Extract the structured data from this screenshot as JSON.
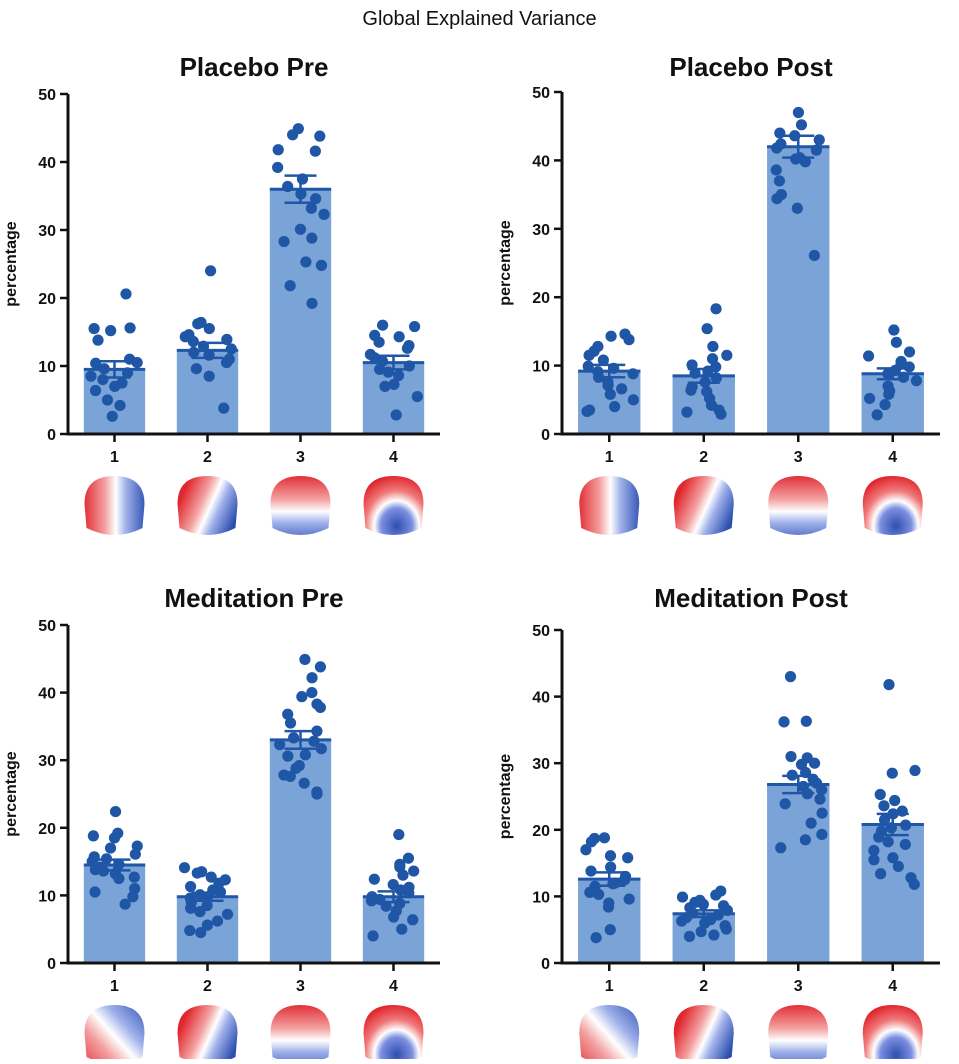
{
  "figure_title": "Global Explained Variance",
  "colors": {
    "bar": "#7aa3d8",
    "point": "#1f56a6",
    "axis": "#111111",
    "topo_red": "#e0262e",
    "topo_blue": "#2c4fb0"
  },
  "chart_data": [
    {
      "type": "bar",
      "title": "Placebo Pre",
      "ylabel": "percentage",
      "ylim": [
        0,
        50
      ],
      "yticks": [
        "0",
        "10",
        "20",
        "30",
        "40",
        "50"
      ],
      "categories": [
        "1",
        "2",
        "3",
        "4"
      ],
      "values": [
        9.5,
        12.3,
        36.0,
        10.5
      ],
      "sem": [
        1.2,
        1.1,
        2.0,
        1.0
      ],
      "points": [
        [
          20.6,
          15.5,
          15.2,
          15.6,
          13.8,
          11.0,
          10.4,
          10.5,
          9.6,
          9.0,
          8.5,
          8.0,
          7.5,
          7.0,
          6.4,
          5.0,
          4.2,
          2.6
        ],
        [
          24.0,
          16.4,
          16.2,
          15.5,
          14.6,
          14.3,
          13.9,
          13.6,
          12.9,
          12.5,
          12.0,
          11.6,
          11.0,
          10.5,
          9.6,
          8.5,
          3.8
        ],
        [
          44.9,
          44.0,
          43.8,
          41.8,
          41.6,
          39.2,
          37.5,
          36.4,
          35.3,
          34.6,
          33.2,
          32.3,
          30.1,
          28.8,
          28.3,
          25.3,
          24.8,
          21.8,
          19.2
        ],
        [
          16.0,
          15.8,
          14.3,
          14.5,
          13.5,
          13.0,
          12.6,
          11.7,
          11.2,
          10.7,
          10.0,
          9.5,
          9.1,
          8.6,
          7.3,
          7.0,
          5.5,
          2.8
        ]
      ]
    },
    {
      "type": "bar",
      "title": "Placebo Post",
      "ylabel": "percentage",
      "ylim": [
        0,
        50
      ],
      "yticks": [
        "0",
        "10",
        "20",
        "30",
        "40",
        "50"
      ],
      "categories": [
        "1",
        "2",
        "3",
        "4"
      ],
      "values": [
        9.2,
        8.5,
        42.0,
        8.8
      ],
      "sem": [
        0.9,
        1.0,
        1.6,
        0.8
      ],
      "points": [
        [
          14.6,
          14.3,
          13.8,
          12.8,
          12.1,
          11.5,
          10.8,
          9.9,
          9.6,
          9.1,
          8.8,
          8.3,
          7.6,
          7.1,
          6.6,
          5.8,
          5.0,
          4.0,
          3.5,
          3.3
        ],
        [
          18.3,
          15.4,
          12.8,
          11.5,
          11.0,
          10.1,
          9.8,
          9.2,
          8.9,
          8.2,
          7.6,
          6.9,
          6.4,
          6.2,
          5.2,
          4.2,
          3.5,
          3.2,
          2.9
        ],
        [
          47.0,
          45.2,
          44.0,
          43.6,
          43.0,
          42.4,
          41.8,
          41.5,
          40.4,
          40.2,
          39.8,
          38.6,
          37.0,
          35.0,
          34.4,
          33.0,
          26.1
        ],
        [
          15.2,
          13.4,
          12.0,
          11.4,
          10.6,
          10.2,
          9.8,
          9.3,
          8.8,
          8.3,
          7.8,
          7.0,
          6.3,
          5.8,
          5.2,
          4.3,
          2.8
        ]
      ]
    },
    {
      "type": "bar",
      "title": "Meditation Pre",
      "ylabel": "percentage",
      "ylim": [
        0,
        50
      ],
      "yticks": [
        "0",
        "10",
        "20",
        "30",
        "40",
        "50"
      ],
      "categories": [
        "1",
        "2",
        "3",
        "4"
      ],
      "values": [
        14.5,
        9.8,
        33.0,
        9.8
      ],
      "sem": [
        0.8,
        0.6,
        1.3,
        0.8
      ],
      "points": [
        [
          22.4,
          19.2,
          18.8,
          18.5,
          17.3,
          17.0,
          16.1,
          15.7,
          15.4,
          15.0,
          14.6,
          14.2,
          13.8,
          13.6,
          13.2,
          12.7,
          12.5,
          11.0,
          10.5,
          9.8,
          8.7
        ],
        [
          14.1,
          13.5,
          13.3,
          12.7,
          12.3,
          11.8,
          11.3,
          10.8,
          10.5,
          10.1,
          9.8,
          9.6,
          9.0,
          8.5,
          8.1,
          7.6,
          7.2,
          6.2,
          5.6,
          4.8,
          4.5
        ],
        [
          44.9,
          43.8,
          42.2,
          40.0,
          39.4,
          38.3,
          37.8,
          36.8,
          35.5,
          34.3,
          33.3,
          32.8,
          32.3,
          31.7,
          30.8,
          30.6,
          29.2,
          28.8,
          27.8,
          27.6,
          26.6,
          25.3,
          25.0
        ],
        [
          19.0,
          15.5,
          14.6,
          14.2,
          13.6,
          13.0,
          12.4,
          11.6,
          11.2,
          10.8,
          10.4,
          9.8,
          9.4,
          9.2,
          8.8,
          8.4,
          7.7,
          6.8,
          6.4,
          5.0,
          4.0
        ]
      ]
    },
    {
      "type": "bar",
      "title": "Meditation Post",
      "ylabel": "percentage",
      "ylim": [
        0,
        50
      ],
      "yticks": [
        "0",
        "10",
        "20",
        "30",
        "40",
        "50"
      ],
      "categories": [
        "1",
        "2",
        "3",
        "4"
      ],
      "values": [
        12.6,
        7.4,
        26.8,
        20.8
      ],
      "sem": [
        1.0,
        0.5,
        1.3,
        1.6
      ],
      "points": [
        [
          18.8,
          18.7,
          18.2,
          17.0,
          16.1,
          15.8,
          14.4,
          13.8,
          13.0,
          12.5,
          12.0,
          11.9,
          11.5,
          10.6,
          10.3,
          9.6,
          9.0,
          8.4,
          5.0,
          3.8
        ],
        [
          10.8,
          10.2,
          9.9,
          9.4,
          9.1,
          8.8,
          8.6,
          8.3,
          7.9,
          7.5,
          7.2,
          6.8,
          6.5,
          6.3,
          6.0,
          5.6,
          5.1,
          4.7,
          4.2,
          4.0
        ],
        [
          43.0,
          36.3,
          36.2,
          31.0,
          30.8,
          30.0,
          29.8,
          28.6,
          28.2,
          27.6,
          27.0,
          26.5,
          26.0,
          25.4,
          24.6,
          23.9,
          22.5,
          21.0,
          19.3,
          18.5,
          17.3
        ],
        [
          41.8,
          28.9,
          28.5,
          25.3,
          24.4,
          23.6,
          22.8,
          22.4,
          21.5,
          20.7,
          20.3,
          19.8,
          18.9,
          18.2,
          17.8,
          16.9,
          15.8,
          15.5,
          14.5,
          13.4,
          12.8,
          11.8
        ]
      ]
    }
  ],
  "topomaps": [
    [
      "left-red-right-blue",
      "left-red-right-blue-band",
      "top-red-bottom-blue",
      "ring-red-center-blue"
    ],
    [
      "left-red-right-blue",
      "left-red-right-blue-band",
      "top-red-bottom-blue",
      "ring-red-center-blue"
    ],
    [
      "diagonal-red-blue",
      "left-red-right-blue-band",
      "top-red-bottom-blue",
      "ring-red-center-blue"
    ],
    [
      "diagonal-red-blue",
      "left-red-right-blue-band",
      "top-red-bottom-blue",
      "ring-red-center-blue"
    ]
  ]
}
